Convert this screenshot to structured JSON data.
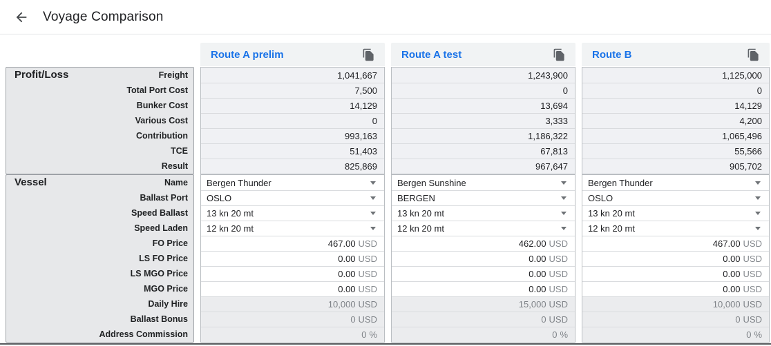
{
  "page": {
    "title": "Voyage Comparison"
  },
  "colors": {
    "accent_blue": "#1a73e8",
    "icon_gray": "#5f6368",
    "text_dark": "#202124",
    "muted_text": "#7f8388",
    "label_panel_bg": "#e7e8ea",
    "numeric_row_bg": "#f0f1f4",
    "readonly_row_bg": "#ebecee",
    "header_bg": "#f1f3f4"
  },
  "table": {
    "columns": [
      {
        "id": "route-a-prelim",
        "label": "Route A prelim"
      },
      {
        "id": "route-a-test",
        "label": "Route A test"
      },
      {
        "id": "route-b",
        "label": "Route B"
      }
    ],
    "sections": [
      {
        "title": "Profit/Loss",
        "rows": [
          {
            "label": "Freight",
            "type": "number",
            "values": [
              "1,041,667",
              "1,243,900",
              "1,125,000"
            ]
          },
          {
            "label": "Total Port Cost",
            "type": "number",
            "values": [
              "7,500",
              "0",
              "0"
            ]
          },
          {
            "label": "Bunker Cost",
            "type": "number",
            "values": [
              "14,129",
              "13,694",
              "14,129"
            ]
          },
          {
            "label": "Various Cost",
            "type": "number",
            "values": [
              "0",
              "3,333",
              "4,200"
            ]
          },
          {
            "label": "Contribution",
            "type": "number",
            "values": [
              "993,163",
              "1,186,322",
              "1,065,496"
            ]
          },
          {
            "label": "TCE",
            "type": "number",
            "values": [
              "51,403",
              "67,813",
              "55,566"
            ]
          },
          {
            "label": "Result",
            "type": "number",
            "values": [
              "825,869",
              "967,647",
              "905,702"
            ]
          }
        ]
      },
      {
        "title": "Vessel",
        "rows": [
          {
            "label": "Name",
            "type": "select",
            "values": [
              "Bergen Thunder",
              "Bergen Sunshine",
              "Bergen Thunder"
            ]
          },
          {
            "label": "Ballast Port",
            "type": "select",
            "values": [
              "OSLO",
              "BERGEN",
              "OSLO"
            ]
          },
          {
            "label": "Speed Ballast",
            "type": "select",
            "values": [
              "13 kn 20 mt",
              "13 kn 20 mt",
              "13 kn 20 mt"
            ]
          },
          {
            "label": "Speed Laden",
            "type": "select",
            "values": [
              "12 kn 20 mt",
              "12 kn 20 mt",
              "12 kn 20 mt"
            ]
          },
          {
            "label": "FO Price",
            "type": "unit",
            "unit": "USD",
            "values": [
              "467.00",
              "462.00",
              "467.00"
            ]
          },
          {
            "label": "LS FO Price",
            "type": "unit",
            "unit": "USD",
            "values": [
              "0.00",
              "0.00",
              "0.00"
            ]
          },
          {
            "label": "LS MGO Price",
            "type": "unit",
            "unit": "USD",
            "values": [
              "0.00",
              "0.00",
              "0.00"
            ]
          },
          {
            "label": "MGO Price",
            "type": "unit",
            "unit": "USD",
            "values": [
              "0.00",
              "0.00",
              "0.00"
            ]
          },
          {
            "label": "Daily Hire",
            "type": "readonly-unit",
            "unit": "USD",
            "values": [
              "10,000",
              "15,000",
              "10,000"
            ]
          },
          {
            "label": "Ballast Bonus",
            "type": "readonly-unit",
            "unit": "USD",
            "values": [
              "0",
              "0",
              "0"
            ]
          },
          {
            "label": "Address Commission",
            "type": "readonly-unit",
            "unit": "%",
            "values": [
              "0",
              "0",
              "0"
            ]
          }
        ]
      }
    ]
  }
}
